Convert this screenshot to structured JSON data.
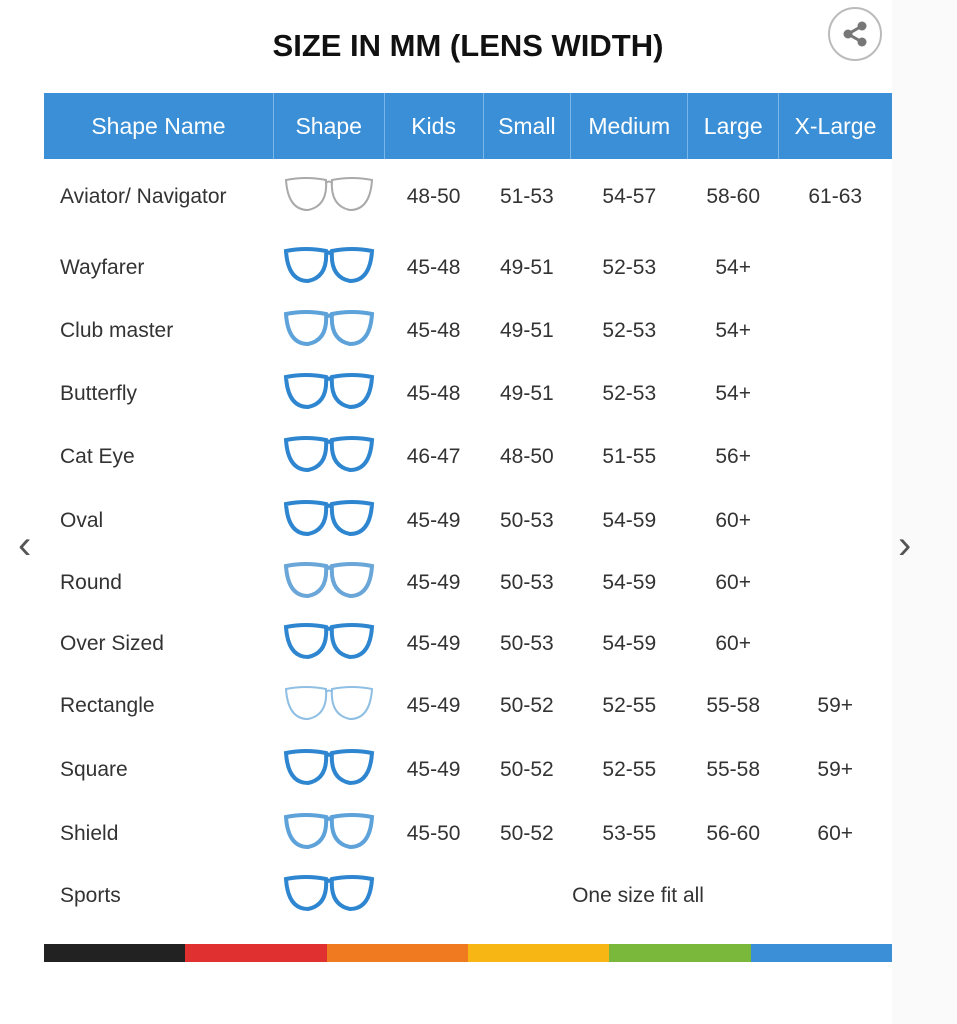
{
  "title": "SIZE IN MM (LENS WIDTH)",
  "headers": [
    "Shape Name",
    "Shape",
    "Kids",
    "Small",
    "Medium",
    "Large",
    "X-Large"
  ],
  "rows": [
    {
      "name": "Aviator/ Navigator",
      "icon": "aviator-glasses-icon",
      "color": "#aaaaaa",
      "sizes": [
        "48-50",
        "51-53",
        "54-57",
        "58-60",
        "61-63"
      ]
    },
    {
      "name": "Wayfarer",
      "icon": "wayfarer-glasses-icon",
      "color": "#2f86d0",
      "sizes": [
        "45-48",
        "49-51",
        "52-53",
        "54+",
        ""
      ]
    },
    {
      "name": "Club master",
      "icon": "clubmaster-glasses-icon",
      "color": "#5ea2da",
      "sizes": [
        "45-48",
        "49-51",
        "52-53",
        "54+",
        ""
      ]
    },
    {
      "name": "Butterfly",
      "icon": "butterfly-glasses-icon",
      "color": "#2f86d0",
      "sizes": [
        "45-48",
        "49-51",
        "52-53",
        "54+",
        ""
      ]
    },
    {
      "name": "Cat Eye",
      "icon": "cat-eye-glasses-icon",
      "color": "#2f86d0",
      "sizes": [
        "46-47",
        "48-50",
        "51-55",
        "56+",
        ""
      ]
    },
    {
      "name": "Oval",
      "icon": "oval-glasses-icon",
      "color": "#2f86d0",
      "sizes": [
        "45-49",
        "50-53",
        "54-59",
        "60+",
        ""
      ]
    },
    {
      "name": "Round",
      "icon": "round-glasses-icon",
      "color": "#6aa6d8",
      "sizes": [
        "45-49",
        "50-53",
        "54-59",
        "60+",
        ""
      ]
    },
    {
      "name": "Over Sized",
      "icon": "oversized-glasses-icon",
      "color": "#2f86d0",
      "sizes": [
        "45-49",
        "50-53",
        "54-59",
        "60+",
        ""
      ]
    },
    {
      "name": "Rectangle",
      "icon": "rectangle-glasses-icon",
      "color": "#8fbfe3",
      "sizes": [
        "45-49",
        "50-52",
        "52-55",
        "55-58",
        "59+"
      ]
    },
    {
      "name": "Square",
      "icon": "square-glasses-icon",
      "color": "#2f86d0",
      "sizes": [
        "45-49",
        "50-52",
        "52-55",
        "55-58",
        "59+"
      ]
    },
    {
      "name": "Shield",
      "icon": "shield-glasses-icon",
      "color": "#5ea2da",
      "sizes": [
        "45-50",
        "50-52",
        "53-55",
        "56-60",
        "60+"
      ]
    },
    {
      "name": "Sports",
      "icon": "sports-glasses-icon",
      "color": "#2f86d0",
      "note": "One size fit all"
    }
  ],
  "colors": {
    "header": "#3a8fd6",
    "stripe": [
      "#222222",
      "#e03030",
      "#f07a20",
      "#f7b614",
      "#79b83a",
      "#3a8fd6"
    ]
  }
}
